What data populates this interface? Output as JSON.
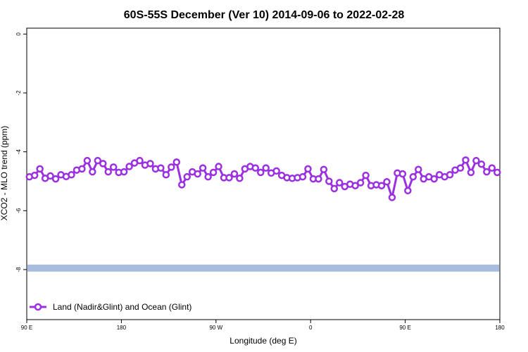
{
  "chart_data": {
    "type": "line",
    "title": "60S-55S December (Ver 10)   2014-09-06 to 2022-02-28",
    "xlabel": "Longitude (deg E)",
    "ylabel": "XCO2 - MLO trend (ppm)",
    "x_ticks": [
      {
        "value": 90,
        "label": "90 E"
      },
      {
        "value": 180,
        "label": "180"
      },
      {
        "value": 270,
        "label": "90 W"
      },
      {
        "value": 360,
        "label": "0"
      },
      {
        "value": 450,
        "label": "90 E"
      },
      {
        "value": 540,
        "label": "180"
      }
    ],
    "y_ticks": [
      0,
      -2,
      -4,
      -6,
      -8
    ],
    "xlim": [
      90,
      540
    ],
    "ylim": [
      -9.7,
      0.2
    ],
    "grid": false,
    "legend_position": "bottom-left",
    "colors": {
      "series": "#9b30e0",
      "band": "#a7bde0"
    },
    "band": {
      "y_center": -7.95,
      "half_height": 0.12
    },
    "series": [
      {
        "name": "Land (Nadir&Glint) and Ocean (Glint)",
        "x": [
          92.5,
          97.5,
          102.5,
          107.5,
          112.5,
          117.5,
          122.5,
          127.5,
          132.5,
          137.5,
          142.5,
          147.5,
          152.5,
          157.5,
          162.5,
          167.5,
          172.5,
          177.5,
          182.5,
          187.5,
          192.5,
          197.5,
          202.5,
          207.5,
          212.5,
          217.5,
          222.5,
          227.5,
          232.5,
          237.5,
          242.5,
          247.5,
          252.5,
          257.5,
          262.5,
          267.5,
          272.5,
          277.5,
          282.5,
          287.5,
          292.5,
          297.5,
          302.5,
          307.5,
          312.5,
          317.5,
          322.5,
          327.5,
          332.5,
          337.5,
          342.5,
          347.5,
          352.5,
          357.5,
          362.5,
          367.5,
          372.5,
          377.5,
          382.5,
          387.5,
          392.5,
          397.5,
          402.5,
          407.5,
          412.5,
          417.5,
          422.5,
          427.5,
          432.5,
          437.5,
          442.5,
          447.5,
          452.5,
          457.5,
          462.5,
          467.5,
          472.5,
          477.5,
          482.5,
          487.5,
          492.5,
          497.5,
          502.5,
          507.5,
          512.5,
          517.5,
          522.5,
          527.5,
          532.5,
          537.5
        ],
        "y": [
          -4.85,
          -4.8,
          -4.58,
          -4.9,
          -4.82,
          -4.92,
          -4.78,
          -4.84,
          -4.78,
          -4.62,
          -4.58,
          -4.3,
          -4.68,
          -4.3,
          -4.4,
          -4.68,
          -4.52,
          -4.7,
          -4.68,
          -4.5,
          -4.38,
          -4.3,
          -4.45,
          -4.4,
          -4.58,
          -4.55,
          -4.78,
          -4.52,
          -4.35,
          -5.12,
          -4.85,
          -4.68,
          -4.75,
          -4.55,
          -4.85,
          -4.7,
          -4.5,
          -4.88,
          -4.88,
          -4.75,
          -4.9,
          -4.58,
          -4.5,
          -4.55,
          -4.7,
          -4.55,
          -4.72,
          -4.65,
          -4.8,
          -4.88,
          -4.9,
          -4.88,
          -4.85,
          -4.58,
          -4.92,
          -4.92,
          -4.6,
          -5.0,
          -5.25,
          -5.05,
          -5.18,
          -5.1,
          -5.15,
          -5.05,
          -4.8,
          -5.15,
          -5.12,
          -5.15,
          -5.02,
          -5.55,
          -4.72,
          -4.75,
          -5.32,
          -4.85,
          -4.6,
          -4.92,
          -4.85,
          -4.92,
          -4.78,
          -4.85,
          -4.78,
          -4.62,
          -4.55,
          -4.28,
          -4.7,
          -4.3,
          -4.42,
          -4.68,
          -4.55,
          -4.7
        ]
      }
    ]
  }
}
